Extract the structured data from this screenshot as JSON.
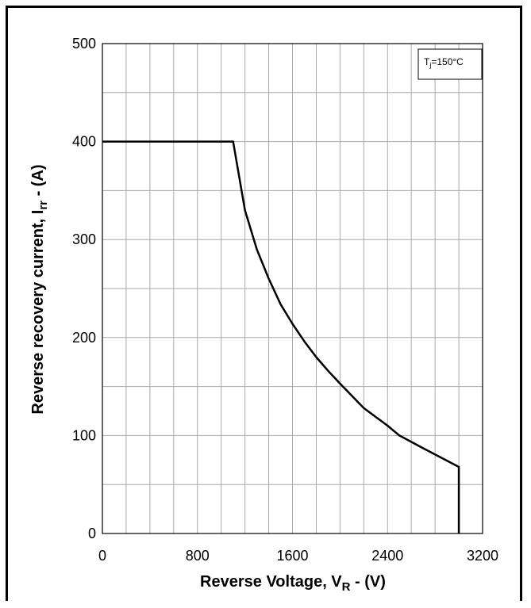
{
  "chart_data": {
    "type": "line",
    "xlabel_main": "Reverse Voltage, V",
    "xlabel_sub": "R",
    "xlabel_tail": " - (V)",
    "ylabel_main": "Reverse recovery current, I",
    "ylabel_sub": "rr",
    "ylabel_tail": " - (A)",
    "xlim": [
      0,
      3200
    ],
    "ylim": [
      0,
      500
    ],
    "x_ticks": [
      0,
      800,
      1600,
      2400,
      3200
    ],
    "y_ticks": [
      0,
      100,
      200,
      300,
      400,
      500
    ],
    "x_grid_step": 200,
    "y_grid_step": 50,
    "grid": true,
    "legend": {
      "main": "T",
      "sub": "j",
      "tail": "=150°C",
      "position": "top-right"
    },
    "series": [
      {
        "x": [
          0,
          1100,
          1200,
          1300,
          1400,
          1500,
          1600,
          1700,
          1800,
          1900,
          2000,
          2200,
          2400,
          2500,
          2700,
          3000,
          3000
        ],
        "y": [
          400,
          400,
          330,
          290,
          260,
          234,
          214,
          196,
          180,
          166,
          153,
          128,
          110,
          100,
          87,
          68,
          0
        ]
      }
    ]
  }
}
